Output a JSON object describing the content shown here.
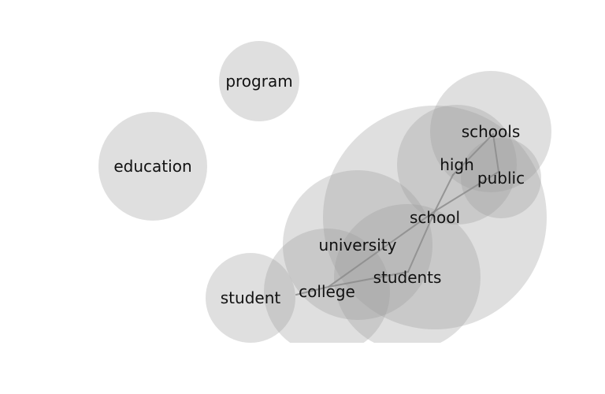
{
  "diagram": {
    "type": "word-association-bubble-network",
    "bubble_color": "#9a9a9a",
    "edge_color": "#8c8c8c",
    "nodes": [
      {
        "id": "program",
        "label": "program"
      },
      {
        "id": "education",
        "label": "education"
      },
      {
        "id": "schools",
        "label": "schools"
      },
      {
        "id": "high",
        "label": "high"
      },
      {
        "id": "public",
        "label": "public"
      },
      {
        "id": "school",
        "label": "school"
      },
      {
        "id": "university",
        "label": "university"
      },
      {
        "id": "students",
        "label": "students"
      },
      {
        "id": "college",
        "label": "college"
      },
      {
        "id": "student",
        "label": "student"
      }
    ],
    "edges": [
      {
        "from": "student",
        "to": "college"
      },
      {
        "from": "college",
        "to": "students"
      },
      {
        "from": "college",
        "to": "school"
      },
      {
        "from": "students",
        "to": "school"
      },
      {
        "from": "school",
        "to": "high"
      },
      {
        "from": "school",
        "to": "public"
      },
      {
        "from": "high",
        "to": "schools"
      },
      {
        "from": "schools",
        "to": "public"
      }
    ]
  }
}
